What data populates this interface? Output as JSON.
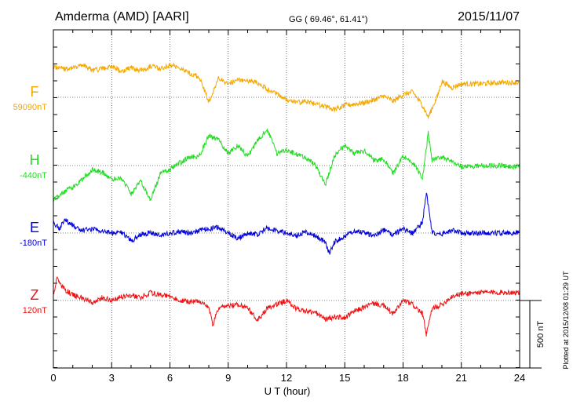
{
  "chart_data": {
    "type": "line",
    "title_left": "Amderma (AMD)  [AARI]",
    "title_center": "GG ( 69.46°,  61.41°)",
    "title_right": "2015/11/07",
    "xlabel": "U T (hour)",
    "xlim": [
      0,
      24
    ],
    "xticks": [
      "0",
      "3",
      "6",
      "9",
      "12",
      "15",
      "18",
      "21",
      "24"
    ],
    "scale_bar": {
      "label": "500 nT",
      "value_nT": 500
    },
    "side_note": "Plotted at 2015/12/08 01:29 UT",
    "grid": true,
    "series": [
      {
        "name": "F",
        "baseline_label": "59090nT",
        "color": "#f5a800",
        "x": [
          0,
          0.5,
          1,
          1.5,
          2,
          2.5,
          3,
          3.5,
          4,
          4.5,
          5,
          5.5,
          6,
          6.5,
          7,
          7.5,
          7.8,
          8,
          8.2,
          8.5,
          9,
          9.5,
          10,
          10.5,
          11,
          11.5,
          12,
          12.5,
          13,
          13.5,
          14,
          14.5,
          15,
          15.5,
          16,
          16.5,
          17,
          17.5,
          18,
          18.5,
          19,
          19.3,
          19.5,
          19.8,
          20,
          20.5,
          21,
          22,
          23,
          24
        ],
        "values": [
          230,
          210,
          220,
          240,
          200,
          210,
          230,
          190,
          220,
          200,
          230,
          210,
          240,
          220,
          180,
          150,
          40,
          -30,
          30,
          140,
          100,
          130,
          120,
          110,
          60,
          30,
          -20,
          -40,
          -30,
          -50,
          -70,
          -90,
          -60,
          -50,
          -40,
          -20,
          10,
          -30,
          20,
          40,
          -60,
          -150,
          -80,
          20,
          120,
          70,
          100,
          100,
          110,
          110
        ]
      },
      {
        "name": "H",
        "baseline_label": "-440nT",
        "color": "#22dd22",
        "x": [
          0,
          0.5,
          1,
          1.5,
          2,
          2.5,
          3,
          3.5,
          4,
          4.5,
          5,
          5.5,
          6,
          6.5,
          7,
          7.5,
          8,
          8.5,
          9,
          9.5,
          10,
          10.5,
          11,
          11.5,
          12,
          12.5,
          13,
          13.5,
          14,
          14.5,
          15,
          15.5,
          16,
          16.5,
          17,
          17.5,
          18,
          18.5,
          19,
          19.3,
          19.5,
          20,
          20.5,
          21,
          22,
          23,
          24
        ],
        "values": [
          -260,
          -200,
          -160,
          -100,
          -30,
          -50,
          -100,
          -90,
          -210,
          -120,
          -260,
          -60,
          -30,
          20,
          60,
          70,
          220,
          190,
          90,
          150,
          70,
          180,
          270,
          90,
          120,
          80,
          60,
          0,
          -140,
          80,
          150,
          90,
          110,
          40,
          50,
          -60,
          70,
          20,
          -90,
          240,
          40,
          60,
          40,
          -10,
          0,
          0,
          -10
        ]
      },
      {
        "name": "E",
        "baseline_label": "-180nT",
        "color": "#0000dd",
        "x": [
          0,
          0.3,
          0.6,
          1,
          1.5,
          2,
          2.5,
          3,
          3.5,
          4,
          4.5,
          5,
          5.5,
          6,
          6.5,
          7,
          7.5,
          8,
          8.5,
          9,
          9.5,
          10,
          10.5,
          11,
          11.5,
          12,
          12.5,
          13,
          13.5,
          14,
          14.2,
          14.5,
          15,
          15.5,
          16,
          16.5,
          17,
          17.5,
          18,
          18.5,
          19,
          19.2,
          19.5,
          20,
          20.5,
          21,
          22,
          23,
          24
        ],
        "values": [
          80,
          30,
          100,
          60,
          20,
          30,
          20,
          0,
          10,
          -60,
          -10,
          0,
          -20,
          0,
          10,
          0,
          20,
          30,
          40,
          0,
          -40,
          0,
          -10,
          40,
          20,
          0,
          -20,
          10,
          -20,
          -70,
          -150,
          -60,
          -30,
          20,
          0,
          -20,
          20,
          -10,
          30,
          0,
          80,
          300,
          0,
          -10,
          20,
          0,
          0,
          0,
          0
        ]
      },
      {
        "name": "Z",
        "baseline_label": "120nT",
        "color": "#ee1111",
        "x": [
          0,
          0.2,
          0.5,
          1,
          1.5,
          2,
          2.5,
          3,
          3.5,
          4,
          4.5,
          5,
          5.5,
          6,
          6.5,
          7,
          7.5,
          8,
          8.2,
          8.5,
          9,
          9.5,
          10,
          10.5,
          11,
          11.5,
          12,
          12.5,
          13,
          13.5,
          14,
          14.5,
          15,
          15.5,
          16,
          16.5,
          17,
          17.5,
          18,
          18.5,
          19,
          19.2,
          19.5,
          20,
          20.5,
          21,
          22,
          23,
          24
        ],
        "values": [
          50,
          170,
          90,
          40,
          20,
          -20,
          20,
          0,
          30,
          40,
          20,
          60,
          40,
          30,
          0,
          -10,
          0,
          -50,
          -180,
          -60,
          -40,
          -30,
          -50,
          -150,
          -60,
          -30,
          0,
          -60,
          -80,
          -90,
          -140,
          -120,
          -130,
          -80,
          -50,
          -20,
          -40,
          -100,
          0,
          -30,
          -100,
          -250,
          -60,
          -30,
          30,
          50,
          60,
          60,
          60
        ]
      }
    ]
  }
}
